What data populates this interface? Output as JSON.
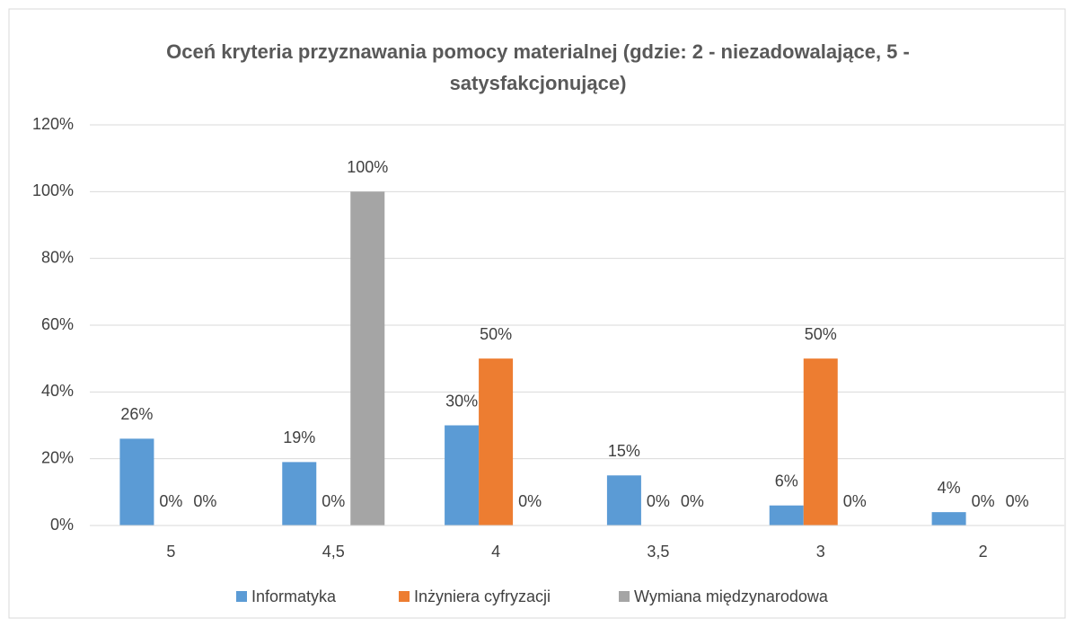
{
  "chart_data": {
    "type": "bar",
    "title": "Oceń kryteria przyznawania pomocy materialnej (gdzie: 2 - niezadowalające, 5 - satysfakcjonujące)",
    "categories": [
      "5",
      "4,5",
      "4",
      "3,5",
      "3",
      "2"
    ],
    "series": [
      {
        "name": "Informatyka",
        "color": "#5b9bd5",
        "values": [
          26,
          19,
          30,
          15,
          6,
          4
        ],
        "value_labels": [
          "26%",
          "19%",
          "30%",
          "15%",
          "6%",
          "4%"
        ]
      },
      {
        "name": "Inżyniera cyfryzacji",
        "color": "#ed7d31",
        "values": [
          0,
          0,
          50,
          0,
          50,
          0
        ],
        "value_labels": [
          "0%",
          "0%",
          "50%",
          "0%",
          "50%",
          "0%"
        ]
      },
      {
        "name": "Wymiana międzynarodowa",
        "color": "#a5a5a5",
        "values": [
          0,
          100,
          0,
          0,
          0,
          0
        ],
        "value_labels": [
          "0%",
          "100%",
          "0%",
          "0%",
          "0%",
          "0%"
        ]
      }
    ],
    "ylim": [
      0,
      120
    ],
    "yticks": [
      {
        "value": 0,
        "label": "0%"
      },
      {
        "value": 20,
        "label": "20%"
      },
      {
        "value": 40,
        "label": "40%"
      },
      {
        "value": 60,
        "label": "60%"
      },
      {
        "value": 80,
        "label": "80%"
      },
      {
        "value": 100,
        "label": "100%"
      },
      {
        "value": 120,
        "label": "120%"
      }
    ],
    "grid": true,
    "legend": "bottom"
  }
}
